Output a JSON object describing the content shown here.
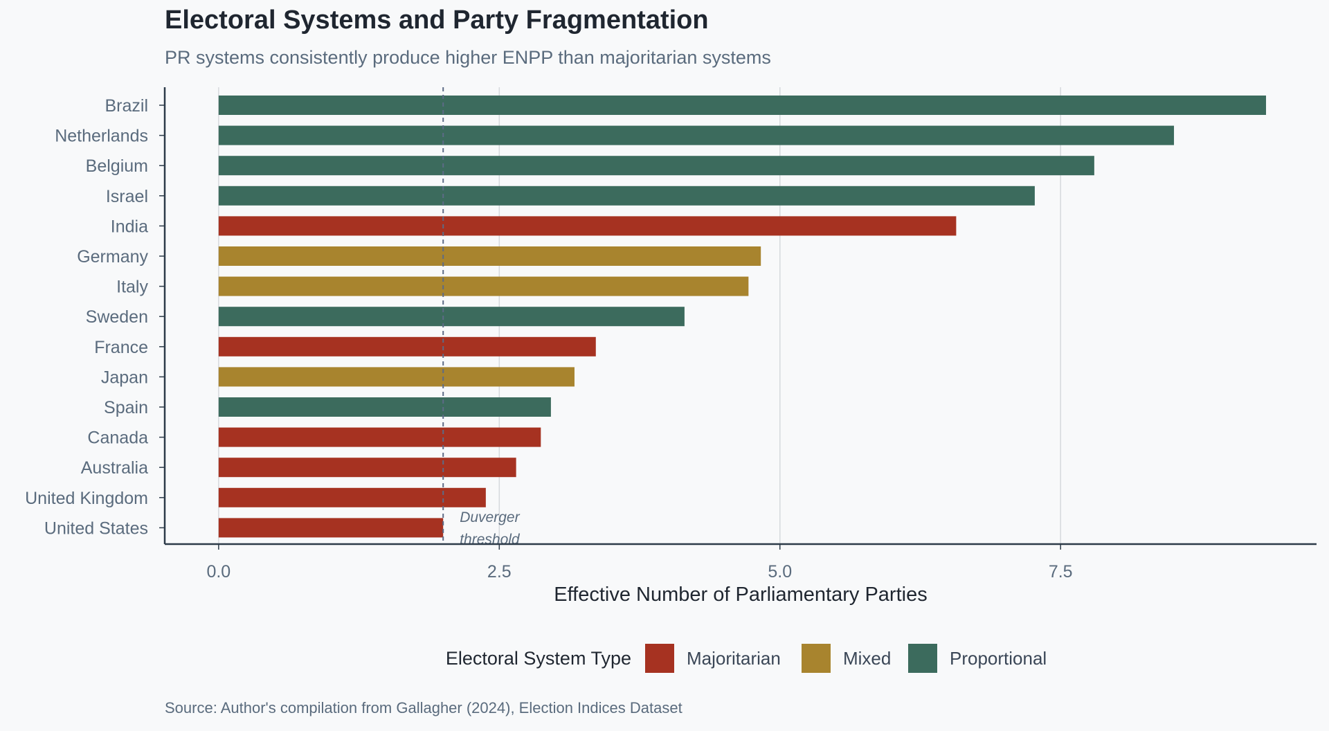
{
  "title": "Electoral Systems and Party Fragmentation",
  "subtitle": "PR systems consistently produce higher ENPP than majoritarian systems",
  "source": "Source: Author's compilation from Gallagher (2024), Election Indices Dataset",
  "chart_data": {
    "type": "bar",
    "orientation": "horizontal",
    "categories": [
      "Brazil",
      "Netherlands",
      "Belgium",
      "Israel",
      "India",
      "Germany",
      "Italy",
      "Sweden",
      "France",
      "Japan",
      "Spain",
      "Canada",
      "Australia",
      "United Kingdom",
      "United States"
    ],
    "values": [
      9.33,
      8.51,
      7.8,
      7.27,
      6.57,
      4.83,
      4.72,
      4.15,
      3.36,
      3.17,
      2.96,
      2.87,
      2.65,
      2.38,
      2.0
    ],
    "system_type": [
      "Proportional",
      "Proportional",
      "Proportional",
      "Proportional",
      "Majoritarian",
      "Mixed",
      "Mixed",
      "Proportional",
      "Majoritarian",
      "Mixed",
      "Proportional",
      "Majoritarian",
      "Majoritarian",
      "Majoritarian",
      "Majoritarian"
    ],
    "xlabel": "Effective Number of Parliamentary Parties",
    "ylabel": "",
    "xlim": [
      -0.48,
      9.78
    ],
    "xticks": [
      0.0,
      2.5,
      5.0,
      7.5
    ],
    "xtick_labels": [
      "0.0",
      "2.5",
      "5.0",
      "7.5"
    ],
    "grid": true,
    "reference_line": {
      "x": 2.0,
      "style": "dashed",
      "label_lines": [
        "Duverger",
        "threshold"
      ]
    },
    "legend": {
      "title": "Electoral System Type",
      "position": "bottom",
      "entries": [
        {
          "label": "Majoritarian",
          "color": "#a63221"
        },
        {
          "label": "Mixed",
          "color": "#a8842e"
        },
        {
          "label": "Proportional",
          "color": "#3c6b5d"
        }
      ]
    }
  },
  "colors": {
    "background": "#f8f9fa",
    "axis": "#2c3a48",
    "grid": "#d6d9dd",
    "reference_line": "#5d6b86"
  }
}
